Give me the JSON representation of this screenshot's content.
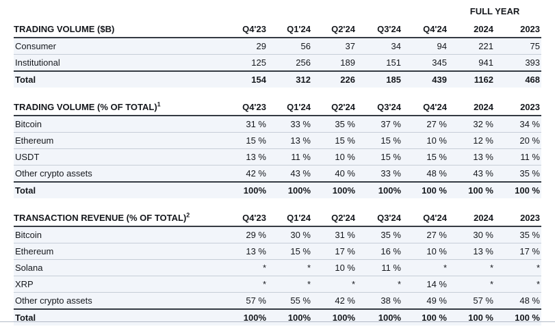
{
  "full_year_label": "FULL YEAR",
  "columns": [
    "Q4'23",
    "Q1'24",
    "Q2'24",
    "Q3'24",
    "Q4'24",
    "2024",
    "2023"
  ],
  "tables": [
    {
      "id": "trading-volume-billions",
      "title": "TRADING VOLUME ($B)",
      "superscript": "",
      "show_full_year_header": true,
      "rows": [
        {
          "label": "Consumer",
          "is_total": false,
          "values": [
            "29",
            "56",
            "37",
            "34",
            "94",
            "221",
            "75"
          ]
        },
        {
          "label": "Institutional",
          "is_total": false,
          "values": [
            "125",
            "256",
            "189",
            "151",
            "345",
            "941",
            "393"
          ]
        },
        {
          "label": "Total",
          "is_total": true,
          "values": [
            "154",
            "312",
            "226",
            "185",
            "439",
            "1162",
            "468"
          ]
        }
      ]
    },
    {
      "id": "trading-volume-pct-of-total",
      "title": "TRADING VOLUME (% OF TOTAL)",
      "superscript": "1",
      "show_full_year_header": false,
      "rows": [
        {
          "label": "Bitcoin",
          "is_total": false,
          "values": [
            "31 %",
            "33 %",
            "35 %",
            "37 %",
            "27 %",
            "32 %",
            "34 %"
          ]
        },
        {
          "label": "Ethereum",
          "is_total": false,
          "values": [
            "15 %",
            "13 %",
            "15 %",
            "15 %",
            "10 %",
            "12 %",
            "20 %"
          ]
        },
        {
          "label": "USDT",
          "is_total": false,
          "values": [
            "13 %",
            "11 %",
            "10 %",
            "15 %",
            "15 %",
            "13 %",
            "11 %"
          ]
        },
        {
          "label": "Other crypto assets",
          "is_total": false,
          "values": [
            "42 %",
            "43 %",
            "40 %",
            "33 %",
            "48 %",
            "43 %",
            "35 %"
          ]
        },
        {
          "label": "Total",
          "is_total": true,
          "values": [
            "100%",
            "100%",
            "100%",
            "100%",
            "100 %",
            "100 %",
            "100 %"
          ]
        }
      ]
    },
    {
      "id": "transaction-revenue-pct-of-total",
      "title": "TRANSACTION REVENUE (% OF TOTAL)",
      "superscript": "2",
      "show_full_year_header": false,
      "rows": [
        {
          "label": "Bitcoin",
          "is_total": false,
          "values": [
            "29 %",
            "30 %",
            "31 %",
            "35 %",
            "27 %",
            "30 %",
            "35 %"
          ]
        },
        {
          "label": "Ethereum",
          "is_total": false,
          "values": [
            "13 %",
            "15 %",
            "17 %",
            "16 %",
            "10 %",
            "13 %",
            "17 %"
          ]
        },
        {
          "label": "Solana",
          "is_total": false,
          "values": [
            "*",
            "*",
            "10 %",
            "11 %",
            "*",
            "*",
            "*"
          ]
        },
        {
          "label": "XRP",
          "is_total": false,
          "values": [
            "*",
            "*",
            "*",
            "*",
            "14 %",
            "*",
            "*"
          ]
        },
        {
          "label": "Other crypto assets",
          "is_total": false,
          "values": [
            "57 %",
            "55 %",
            "42 %",
            "38 %",
            "49 %",
            "57 %",
            "48 %"
          ]
        },
        {
          "label": "Total",
          "is_total": true,
          "values": [
            "100%",
            "100%",
            "100%",
            "100%",
            "100 %",
            "100 %",
            "100 %"
          ]
        }
      ]
    }
  ],
  "colors": {
    "row_background": "#f2f5fa",
    "dark_rule": "#343a42",
    "light_rule": "#c6cdd7",
    "bottom_divider": "#b2bac6",
    "text": "#14171c",
    "page_background": "#ffffff"
  }
}
